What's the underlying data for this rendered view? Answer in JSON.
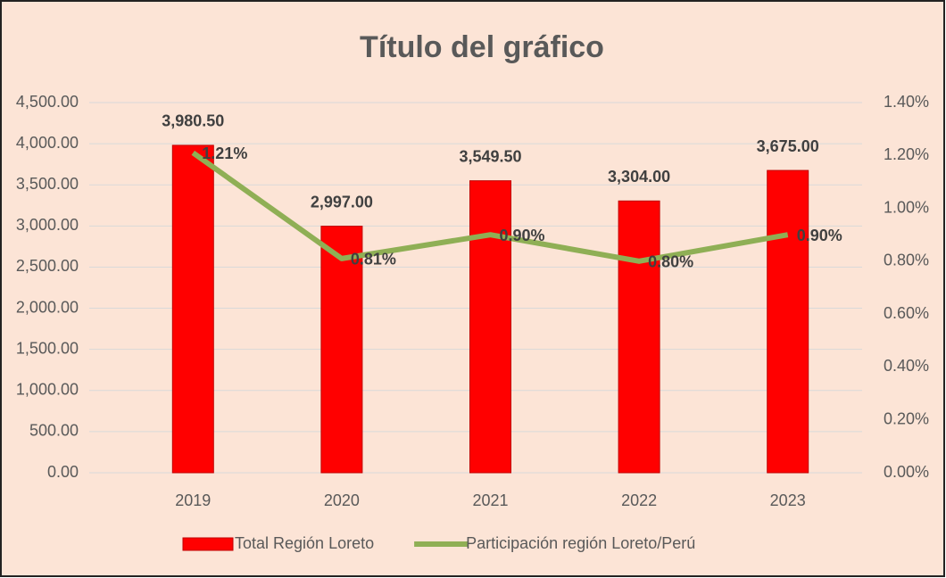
{
  "chart_data": {
    "type": "bar",
    "title": "Título del gráfico",
    "categories": [
      "2019",
      "2020",
      "2021",
      "2022",
      "2023"
    ],
    "series": [
      {
        "name": "Total Región Loreto",
        "type": "bar",
        "color": "#ff0000",
        "values": [
          3980.5,
          2997,
          3549.5,
          3304,
          3675
        ],
        "value_labels": [
          "3,980.50",
          "2,997.00",
          "3,549.50",
          "3,304.00",
          "3,675.00"
        ]
      },
      {
        "name": "Participación región Loreto/Perú",
        "type": "line",
        "axis": "y2",
        "color": "#8faf55",
        "values": [
          1.21,
          0.81,
          0.9,
          0.8,
          0.9
        ],
        "value_labels": [
          "1.21%",
          "0.81%",
          "0.90%",
          "0.80%",
          "0.90%"
        ]
      }
    ],
    "ylim": [
      0,
      4500
    ],
    "yticks": [
      {
        "value": 0,
        "label": "0.00"
      },
      {
        "value": 500,
        "label": "500.00"
      },
      {
        "value": 1000,
        "label": "1,000.00"
      },
      {
        "value": 1500,
        "label": "1,500.00"
      },
      {
        "value": 2000,
        "label": "2,000.00"
      },
      {
        "value": 2500,
        "label": "2,500.00"
      },
      {
        "value": 3000,
        "label": "3,000.00"
      },
      {
        "value": 3500,
        "label": "3,500.00"
      },
      {
        "value": 4000,
        "label": "4,000.00"
      },
      {
        "value": 4500,
        "label": "4,500.00"
      }
    ],
    "y2lim": [
      0,
      1.4
    ],
    "y2ticks": [
      {
        "value": 0,
        "label": "0.00%"
      },
      {
        "value": 0.2,
        "label": "0.20%"
      },
      {
        "value": 0.4,
        "label": "0.40%"
      },
      {
        "value": 0.6,
        "label": "0.60%"
      },
      {
        "value": 0.8,
        "label": "0.80%"
      },
      {
        "value": 1.0,
        "label": "1.00%"
      },
      {
        "value": 1.2,
        "label": "1.20%"
      },
      {
        "value": 1.4,
        "label": "1.40%"
      }
    ],
    "grid": true,
    "legend": "bottom"
  }
}
